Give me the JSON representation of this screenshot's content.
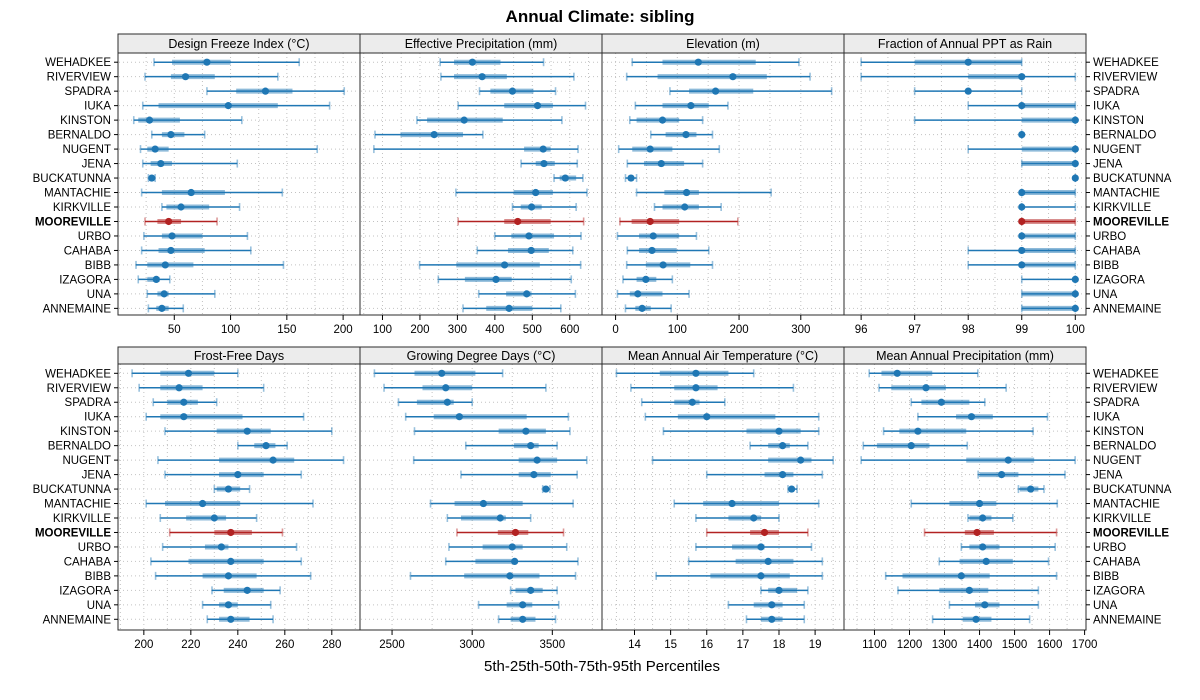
{
  "page": {
    "title": "Annual Climate: sibling",
    "footer": "5th-25th-50th-75th-95th Percentiles"
  },
  "colors": {
    "series": "#1f77b4",
    "highlight": "#b22222",
    "strip_bg": "#ececec",
    "panel_border": "#2b2b2b",
    "grid": "#c2c2c2",
    "text": "#000000"
  },
  "chart_data": {
    "type": "dot-whisker-percentiles",
    "title": "Annual Climate: sibling",
    "caption": "5th-25th-50th-75th-95th Percentiles",
    "percentile_labels": [
      "5th",
      "25th",
      "50th",
      "75th",
      "95th"
    ],
    "highlight_station": "MOOREVILLE",
    "stations": [
      "WEHADKEE",
      "RIVERVIEW",
      "SPADRA",
      "IUKA",
      "KINSTON",
      "BERNALDO",
      "NUGENT",
      "JENA",
      "BUCKATUNNA",
      "MANTACHIE",
      "KIRKVILLE",
      "MOOREVILLE",
      "URBO",
      "CAHABA",
      "BIBB",
      "IZAGORA",
      "UNA",
      "ANNEMAINE"
    ],
    "panels": [
      {
        "title": "Design Freeze Index (°C)",
        "xlim": [
          0,
          215
        ],
        "ticks": [
          50,
          100,
          150,
          200
        ],
        "grid_step": 25,
        "values": [
          [
            32,
            48,
            79,
            100,
            161
          ],
          [
            24,
            47,
            60,
            86,
            142
          ],
          [
            79,
            105,
            131,
            155,
            201
          ],
          [
            22,
            36,
            98,
            142,
            188
          ],
          [
            14,
            18,
            28,
            55,
            110
          ],
          [
            30,
            39,
            47,
            59,
            77
          ],
          [
            20,
            26,
            33,
            45,
            177
          ],
          [
            22,
            29,
            38,
            48,
            106
          ],
          [
            27,
            29,
            30,
            31,
            33
          ],
          [
            21,
            39,
            65,
            95,
            146
          ],
          [
            39,
            43,
            56,
            81,
            108
          ],
          [
            24,
            35,
            45,
            56,
            88
          ],
          [
            23,
            39,
            48,
            75,
            115
          ],
          [
            21,
            36,
            47,
            77,
            118
          ],
          [
            16,
            26,
            42,
            67,
            147
          ],
          [
            18,
            26,
            34,
            37,
            46
          ],
          [
            26,
            35,
            41,
            45,
            86
          ],
          [
            27,
            34,
            39,
            45,
            58
          ]
        ]
      },
      {
        "title": "Effective Precipitation (mm)",
        "xlim": [
          40,
          686
        ],
        "ticks": [
          100,
          200,
          300,
          400,
          500,
          600
        ],
        "grid_step": 50,
        "values": [
          [
            254,
            291,
            340,
            415,
            530
          ],
          [
            256,
            291,
            366,
            432,
            611
          ],
          [
            359,
            388,
            447,
            503,
            562
          ],
          [
            302,
            425,
            514,
            555,
            642
          ],
          [
            192,
            219,
            318,
            421,
            579
          ],
          [
            80,
            148,
            238,
            315,
            368
          ],
          [
            77,
            478,
            529,
            549,
            622
          ],
          [
            470,
            509,
            531,
            560,
            620
          ],
          [
            558,
            573,
            588,
            617,
            635
          ],
          [
            296,
            450,
            509,
            555,
            646
          ],
          [
            447,
            469,
            498,
            525,
            617
          ],
          [
            302,
            425,
            461,
            549,
            637
          ],
          [
            400,
            444,
            491,
            558,
            630
          ],
          [
            353,
            435,
            497,
            544,
            608
          ],
          [
            199,
            297,
            426,
            520,
            629
          ],
          [
            249,
            320,
            403,
            445,
            604
          ],
          [
            357,
            430,
            485,
            498,
            615
          ],
          [
            315,
            377,
            438,
            500,
            576
          ]
        ]
      },
      {
        "title": "Elevation (m)",
        "xlim": [
          -22,
          370
        ],
        "ticks": [
          0,
          100,
          200,
          300
        ],
        "grid_step": 50,
        "values": [
          [
            27,
            76,
            134,
            227,
            297
          ],
          [
            18,
            68,
            190,
            245,
            315
          ],
          [
            88,
            119,
            162,
            223,
            350
          ],
          [
            32,
            76,
            122,
            151,
            182
          ],
          [
            23,
            34,
            76,
            103,
            141
          ],
          [
            57,
            81,
            114,
            131,
            157
          ],
          [
            5,
            27,
            56,
            92,
            168
          ],
          [
            19,
            46,
            74,
            111,
            141
          ],
          [
            16,
            20,
            25,
            28,
            34
          ],
          [
            34,
            79,
            115,
            135,
            252
          ],
          [
            63,
            76,
            112,
            135,
            171
          ],
          [
            7,
            26,
            56,
            103,
            198
          ],
          [
            3,
            38,
            61,
            103,
            131
          ],
          [
            19,
            38,
            59,
            99,
            151
          ],
          [
            18,
            49,
            77,
            121,
            157
          ],
          [
            12,
            34,
            49,
            66,
            92
          ],
          [
            3,
            23,
            36,
            76,
            119
          ],
          [
            16,
            32,
            43,
            57,
            90
          ]
        ]
      },
      {
        "title": "Fraction of Annual PPT as Rain",
        "xlim": [
          95.68,
          100.2
        ],
        "ticks": [
          96,
          97,
          98,
          99,
          100
        ],
        "grid_step": 0.5,
        "values": [
          [
            96,
            97,
            98,
            99,
            99
          ],
          [
            96,
            98,
            99,
            99,
            100
          ],
          [
            97,
            98,
            98,
            98,
            99
          ],
          [
            98,
            99,
            99,
            100,
            100
          ],
          [
            97,
            99,
            100,
            100,
            100
          ],
          [
            99,
            99,
            99,
            99,
            99
          ],
          [
            98,
            99,
            100,
            100,
            100
          ],
          [
            99,
            99,
            100,
            100,
            100
          ],
          [
            100,
            100,
            100,
            100,
            100
          ],
          [
            99,
            99,
            99,
            100,
            100
          ],
          [
            99,
            99,
            99,
            99,
            100
          ],
          [
            99,
            99,
            99,
            100,
            100
          ],
          [
            99,
            99,
            99,
            100,
            100
          ],
          [
            98,
            99,
            99,
            100,
            100
          ],
          [
            98,
            99,
            99,
            100,
            100
          ],
          [
            99,
            100,
            100,
            100,
            100
          ],
          [
            99,
            99,
            100,
            100,
            100
          ],
          [
            99,
            99,
            100,
            100,
            100
          ]
        ]
      },
      {
        "title": "Frost-Free Days",
        "xlim": [
          189,
          292
        ],
        "ticks": [
          200,
          220,
          240,
          260,
          280
        ],
        "grid_step": 10,
        "values": [
          [
            195,
            207,
            219,
            230,
            240
          ],
          [
            198,
            207,
            215,
            225,
            251
          ],
          [
            204,
            210,
            217,
            223,
            231
          ],
          [
            201,
            207,
            217,
            242,
            268
          ],
          [
            209,
            231,
            244,
            254,
            280
          ],
          [
            240,
            247,
            252,
            256,
            261
          ],
          [
            206,
            232,
            255,
            264,
            285
          ],
          [
            209,
            232,
            240,
            251,
            267
          ],
          [
            230,
            231,
            236,
            241,
            245
          ],
          [
            201,
            209,
            225,
            241,
            272
          ],
          [
            207,
            218,
            230,
            235,
            248
          ],
          [
            211,
            230,
            237,
            246,
            259
          ],
          [
            208,
            226,
            233,
            236,
            265
          ],
          [
            203,
            219,
            237,
            251,
            267
          ],
          [
            205,
            225,
            236,
            248,
            271
          ],
          [
            229,
            234,
            244,
            251,
            258
          ],
          [
            225,
            232,
            236,
            240,
            254
          ],
          [
            227,
            232,
            237,
            245,
            255
          ]
        ]
      },
      {
        "title": "Growing Degree Days (°C)",
        "xlim": [
          2300,
          3810
        ],
        "ticks": [
          2500,
          3000,
          3500
        ],
        "grid_step": 250,
        "values": [
          [
            2390,
            2640,
            2810,
            3020,
            3190
          ],
          [
            2450,
            2690,
            2835,
            3000,
            3460
          ],
          [
            2540,
            2655,
            2845,
            2885,
            3000
          ],
          [
            2585,
            2760,
            2920,
            3340,
            3600
          ],
          [
            2640,
            3165,
            3335,
            3460,
            3610
          ],
          [
            2960,
            3260,
            3365,
            3415,
            3530
          ],
          [
            2635,
            3290,
            3405,
            3530,
            3715
          ],
          [
            2930,
            3290,
            3385,
            3490,
            3655
          ],
          [
            3440,
            3450,
            3460,
            3470,
            3485
          ],
          [
            2740,
            2890,
            3070,
            3315,
            3630
          ],
          [
            2845,
            2930,
            3175,
            3210,
            3365
          ],
          [
            2905,
            3160,
            3270,
            3350,
            3570
          ],
          [
            2855,
            3065,
            3250,
            3315,
            3590
          ],
          [
            2835,
            3020,
            3265,
            3280,
            3660
          ],
          [
            2615,
            2950,
            3235,
            3420,
            3645
          ],
          [
            3240,
            3270,
            3365,
            3440,
            3530
          ],
          [
            3040,
            3215,
            3315,
            3375,
            3540
          ],
          [
            3165,
            3240,
            3315,
            3395,
            3520
          ]
        ]
      },
      {
        "title": "Mean Annual Air Temperature (°C)",
        "xlim": [
          13.1,
          19.8
        ],
        "ticks": [
          14,
          15,
          16,
          17,
          18,
          19
        ],
        "grid_step": 0.5,
        "values": [
          [
            13.5,
            14.7,
            15.7,
            16.6,
            17.3
          ],
          [
            13.9,
            15.1,
            15.7,
            16.3,
            18.4
          ],
          [
            14.2,
            15.1,
            15.6,
            15.8,
            16.5
          ],
          [
            14.3,
            15.2,
            16.0,
            17.9,
            19.1
          ],
          [
            14.8,
            17.1,
            18.0,
            18.6,
            19.1
          ],
          [
            17.2,
            17.7,
            18.1,
            18.3,
            18.8
          ],
          [
            14.5,
            17.7,
            18.6,
            18.9,
            19.5
          ],
          [
            16.0,
            17.6,
            18.1,
            18.4,
            19.2
          ],
          [
            18.25,
            18.3,
            18.35,
            18.4,
            18.5
          ],
          [
            15.1,
            15.9,
            16.7,
            18.0,
            19.1
          ],
          [
            15.7,
            16.6,
            17.3,
            17.5,
            18.0
          ],
          [
            16.0,
            17.2,
            17.6,
            18.0,
            18.8
          ],
          [
            15.7,
            16.7,
            17.5,
            17.6,
            18.9
          ],
          [
            15.5,
            16.8,
            17.7,
            18.4,
            19.2
          ],
          [
            14.6,
            16.1,
            17.5,
            18.3,
            19.2
          ],
          [
            17.5,
            17.7,
            18.0,
            18.5,
            18.8
          ],
          [
            16.6,
            17.3,
            17.8,
            18.1,
            18.7
          ],
          [
            17.1,
            17.5,
            17.8,
            18.1,
            18.7
          ]
        ]
      },
      {
        "title": "Mean Annual Precipitation (mm)",
        "xlim": [
          1013,
          1704
        ],
        "ticks": [
          1100,
          1200,
          1300,
          1400,
          1500,
          1600,
          1700
        ],
        "grid_step": 50,
        "values": [
          [
            1085,
            1120,
            1165,
            1265,
            1395
          ],
          [
            1113,
            1148,
            1247,
            1304,
            1476
          ],
          [
            1205,
            1234,
            1291,
            1371,
            1415
          ],
          [
            1224,
            1333,
            1377,
            1438,
            1594
          ],
          [
            1126,
            1171,
            1224,
            1362,
            1553
          ],
          [
            1068,
            1107,
            1205,
            1257,
            1365
          ],
          [
            1062,
            1362,
            1482,
            1556,
            1673
          ],
          [
            1396,
            1400,
            1463,
            1511,
            1644
          ],
          [
            1511,
            1515,
            1546,
            1568,
            1584
          ],
          [
            1205,
            1314,
            1400,
            1448,
            1622
          ],
          [
            1367,
            1371,
            1409,
            1434,
            1495
          ],
          [
            1243,
            1358,
            1393,
            1441,
            1620
          ],
          [
            1348,
            1371,
            1409,
            1457,
            1616
          ],
          [
            1285,
            1343,
            1419,
            1495,
            1597
          ],
          [
            1132,
            1180,
            1348,
            1429,
            1620
          ],
          [
            1167,
            1285,
            1371,
            1425,
            1568
          ],
          [
            1314,
            1387,
            1415,
            1457,
            1568
          ],
          [
            1266,
            1352,
            1390,
            1434,
            1543
          ]
        ]
      }
    ]
  }
}
